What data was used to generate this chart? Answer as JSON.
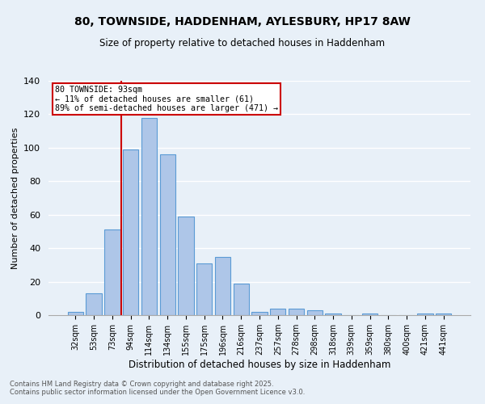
{
  "title": "80, TOWNSIDE, HADDENHAM, AYLESBURY, HP17 8AW",
  "subtitle": "Size of property relative to detached houses in Haddenham",
  "xlabel": "Distribution of detached houses by size in Haddenham",
  "ylabel": "Number of detached properties",
  "categories": [
    "32sqm",
    "53sqm",
    "73sqm",
    "94sqm",
    "114sqm",
    "134sqm",
    "155sqm",
    "175sqm",
    "196sqm",
    "216sqm",
    "237sqm",
    "257sqm",
    "278sqm",
    "298sqm",
    "318sqm",
    "339sqm",
    "359sqm",
    "380sqm",
    "400sqm",
    "421sqm",
    "441sqm"
  ],
  "values": [
    2,
    13,
    51,
    99,
    118,
    96,
    59,
    31,
    35,
    19,
    2,
    4,
    4,
    3,
    1,
    0,
    1,
    0,
    0,
    1,
    1
  ],
  "bar_color": "#aec6e8",
  "bar_edge_color": "#5b9bd5",
  "bg_color": "#e8f0f8",
  "grid_color": "#ffffff",
  "annotation_text_line1": "80 TOWNSIDE: 93sqm",
  "annotation_text_line2": "← 11% of detached houses are smaller (61)",
  "annotation_text_line3": "89% of semi-detached houses are larger (471) →",
  "annotation_box_color": "#ffffff",
  "annotation_box_edge": "#cc0000",
  "vline_color": "#cc0000",
  "footnote_line1": "Contains HM Land Registry data © Crown copyright and database right 2025.",
  "footnote_line2": "Contains public sector information licensed under the Open Government Licence v3.0.",
  "ylim": [
    0,
    140
  ],
  "yticks": [
    0,
    20,
    40,
    60,
    80,
    100,
    120,
    140
  ]
}
